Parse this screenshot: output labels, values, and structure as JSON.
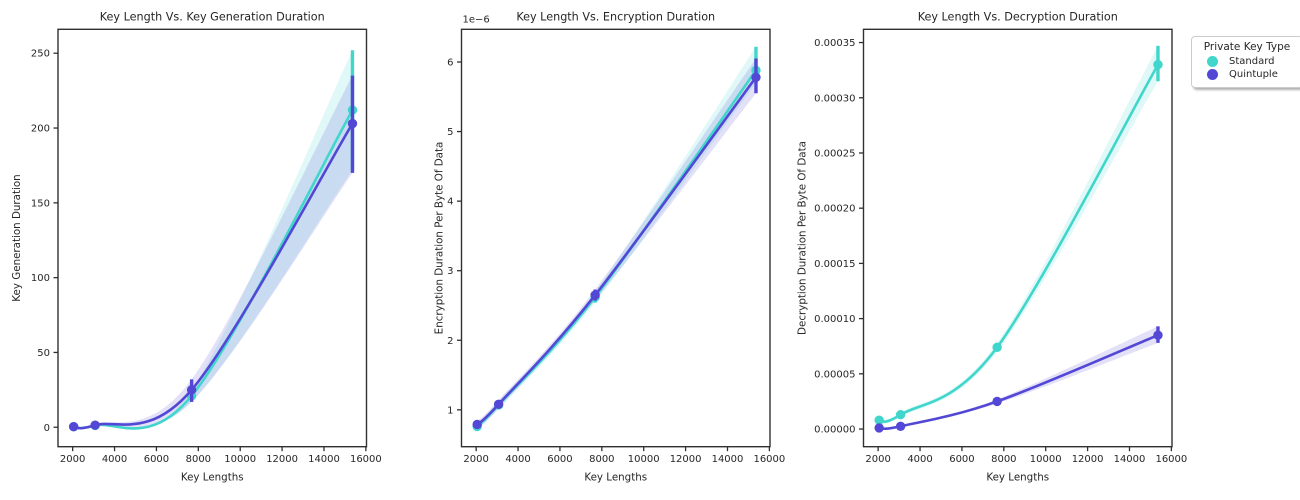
{
  "figure": {
    "background": "#ffffff",
    "text_color": "#262626",
    "spine_color": "#303030"
  },
  "legend": {
    "title": "Private Key Type",
    "items": [
      {
        "label": "Standard",
        "color": "#41d6cb"
      },
      {
        "label": "Quintuple",
        "color": "#5347d5"
      }
    ]
  },
  "chart_data": [
    {
      "type": "line",
      "title": "Key Length Vs. Key Generation Duration",
      "xlabel": "Key Lengths",
      "ylabel": "Key Generation Duration",
      "x": [
        2048,
        3072,
        7680,
        15360
      ],
      "xlim": [
        1300,
        16030
      ],
      "ylim": [
        -13,
        266
      ],
      "xticks": [
        2000,
        4000,
        6000,
        8000,
        10000,
        12000,
        14000,
        16000
      ],
      "yticks": [
        0,
        50,
        100,
        150,
        200,
        250
      ],
      "ytick_format": "int",
      "grid": false,
      "legend_position": "outside-top-right",
      "series": [
        {
          "name": "Standard",
          "color": "#41d6cb",
          "values": [
            0.4,
            1.2,
            21,
            212
          ],
          "ci_lo": [
            0.3,
            1.0,
            17,
            172
          ],
          "ci_hi": [
            0.6,
            1.5,
            25,
            252
          ]
        },
        {
          "name": "Quintuple",
          "color": "#5347d5",
          "values": [
            0.4,
            1.4,
            25,
            203
          ],
          "ci_lo": [
            0.3,
            1.1,
            17,
            170
          ],
          "ci_hi": [
            0.6,
            1.8,
            32,
            235
          ]
        }
      ]
    },
    {
      "type": "line",
      "title": "Key Length Vs. Encryption Duration",
      "xlabel": "Key Lengths",
      "ylabel": "Encryption Duration Per Byte Of Data",
      "offset_text": "1e−6",
      "values_unit": "×1e−6",
      "x": [
        2048,
        3072,
        7680,
        15360
      ],
      "xlim": [
        1300,
        16030
      ],
      "ylim": [
        0.47,
        6.47
      ],
      "xticks": [
        2000,
        4000,
        6000,
        8000,
        10000,
        12000,
        14000,
        16000
      ],
      "yticks": [
        1,
        2,
        3,
        4,
        5,
        6
      ],
      "ytick_format": "int",
      "grid": false,
      "series": [
        {
          "name": "Standard",
          "color": "#41d6cb",
          "values": [
            0.76,
            1.07,
            2.62,
            5.88
          ],
          "ci_lo": [
            0.71,
            1.01,
            2.54,
            5.7
          ],
          "ci_hi": [
            0.81,
            1.13,
            2.7,
            6.22
          ]
        },
        {
          "name": "Quintuple",
          "color": "#5347d5",
          "values": [
            0.79,
            1.08,
            2.65,
            5.78
          ],
          "ci_lo": [
            0.74,
            1.02,
            2.57,
            5.55
          ],
          "ci_hi": [
            0.84,
            1.14,
            2.73,
            6.05
          ]
        }
      ]
    },
    {
      "type": "line",
      "title": "Key Length Vs. Decryption Duration",
      "xlabel": "Key Lengths",
      "ylabel": "Decryption Duration Per Byte Of Data",
      "x": [
        2048,
        3072,
        7680,
        15360
      ],
      "xlim": [
        1300,
        16030
      ],
      "ylim": [
        -1.6e-05,
        0.000362
      ],
      "xticks": [
        2000,
        4000,
        6000,
        8000,
        10000,
        12000,
        14000,
        16000
      ],
      "yticks": [
        0.0,
        5e-05,
        0.0001,
        0.00015,
        0.0002,
        0.00025,
        0.0003,
        0.00035
      ],
      "ytick_format": "fixed5",
      "grid": false,
      "series": [
        {
          "name": "Standard",
          "color": "#41d6cb",
          "values": [
            8e-06,
            1.3e-05,
            7.4e-05,
            0.00033
          ],
          "ci_lo": [
            6e-06,
            1.1e-05,
            7e-05,
            0.000315
          ],
          "ci_hi": [
            1e-05,
            1.5e-05,
            7.8e-05,
            0.000347
          ]
        },
        {
          "name": "Quintuple",
          "color": "#5347d5",
          "values": [
            1e-06,
            2.5e-06,
            2.5e-05,
            8.5e-05
          ],
          "ci_lo": [
            5e-07,
            2e-06,
            2.3e-05,
            7.8e-05
          ],
          "ci_hi": [
            1.5e-06,
            3e-06,
            2.7e-05,
            9.3e-05
          ]
        }
      ]
    }
  ]
}
